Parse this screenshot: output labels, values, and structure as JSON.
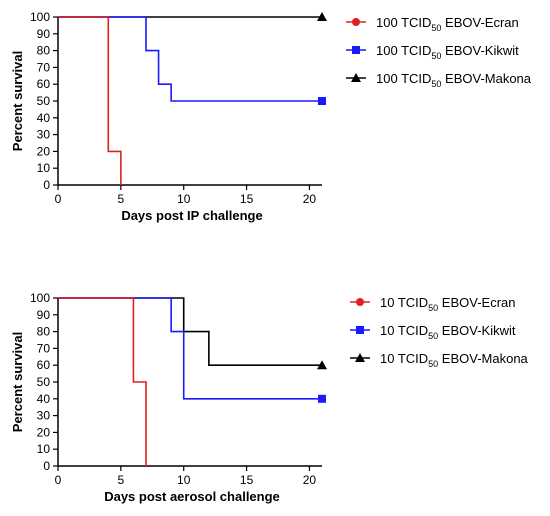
{
  "chart_data": [
    {
      "type": "line",
      "step": true,
      "xlabel": "Days post IP challenge",
      "ylabel": "Percent survival",
      "xlim": [
        0,
        21
      ],
      "ylim": [
        0,
        100
      ],
      "xticks": [
        "0",
        "5",
        "10",
        "15",
        "20"
      ],
      "yticks": [
        "0",
        "10",
        "20",
        "30",
        "40",
        "50",
        "60",
        "70",
        "80",
        "90",
        "100"
      ],
      "grid": false,
      "legend_position": "right",
      "series": [
        {
          "name": "100 TCID50 EBOV-Ecran",
          "legend": {
            "pre": "100 TCID",
            "sub": "50",
            "post": " EBOV-Ecran"
          },
          "color": "#e02020",
          "marker": "circle",
          "points": [
            [
              0,
              100
            ],
            [
              4,
              100
            ],
            [
              4,
              20
            ],
            [
              5,
              20
            ],
            [
              5,
              0
            ]
          ],
          "end_marker": false
        },
        {
          "name": "100 TCID50 EBOV-Kikwit",
          "legend": {
            "pre": "100 TCID",
            "sub": "50",
            "post": " EBOV-Kikwit"
          },
          "color": "#1a1aff",
          "marker": "square",
          "points": [
            [
              0,
              100
            ],
            [
              7,
              100
            ],
            [
              7,
              80
            ],
            [
              8,
              80
            ],
            [
              8,
              60
            ],
            [
              9,
              60
            ],
            [
              9,
              50
            ],
            [
              21,
              50
            ]
          ],
          "end_marker": true
        },
        {
          "name": "100 TCID50 EBOV-Makona",
          "legend": {
            "pre": "100 TCID",
            "sub": "50",
            "post": " EBOV-Makona"
          },
          "color": "#000000",
          "marker": "triangle",
          "points": [
            [
              0,
              100
            ],
            [
              21,
              100
            ]
          ],
          "end_marker": true
        }
      ]
    },
    {
      "type": "line",
      "step": true,
      "xlabel": "Days post aerosol challenge",
      "ylabel": "Percent survival",
      "xlim": [
        0,
        21
      ],
      "ylim": [
        0,
        100
      ],
      "xticks": [
        "0",
        "5",
        "10",
        "15",
        "20"
      ],
      "yticks": [
        "0",
        "10",
        "20",
        "30",
        "40",
        "50",
        "60",
        "70",
        "80",
        "90",
        "100"
      ],
      "grid": false,
      "legend_position": "right",
      "series": [
        {
          "name": "10 TCID50 EBOV-Ecran",
          "legend": {
            "pre": "10 TCID",
            "sub": "50",
            "post": " EBOV-Ecran"
          },
          "color": "#e02020",
          "marker": "circle",
          "points": [
            [
              0,
              100
            ],
            [
              6,
              100
            ],
            [
              6,
              50
            ],
            [
              7,
              50
            ],
            [
              7,
              0
            ]
          ],
          "end_marker": false
        },
        {
          "name": "10 TCID50 EBOV-Kikwit",
          "legend": {
            "pre": "10 TCID",
            "sub": "50",
            "post": " EBOV-Kikwit"
          },
          "color": "#1a1aff",
          "marker": "square",
          "points": [
            [
              0,
              100
            ],
            [
              9,
              100
            ],
            [
              9,
              80
            ],
            [
              10,
              80
            ],
            [
              10,
              40
            ],
            [
              21,
              40
            ]
          ],
          "end_marker": true
        },
        {
          "name": "10 TCID50 EBOV-Makona",
          "legend": {
            "pre": "10 TCID",
            "sub": "50",
            "post": " EBOV-Makona"
          },
          "color": "#000000",
          "marker": "triangle",
          "points": [
            [
              0,
              100
            ],
            [
              10,
              100
            ],
            [
              10,
              80
            ],
            [
              12,
              80
            ],
            [
              12,
              60
            ],
            [
              21,
              60
            ]
          ],
          "end_marker": true
        }
      ]
    }
  ]
}
